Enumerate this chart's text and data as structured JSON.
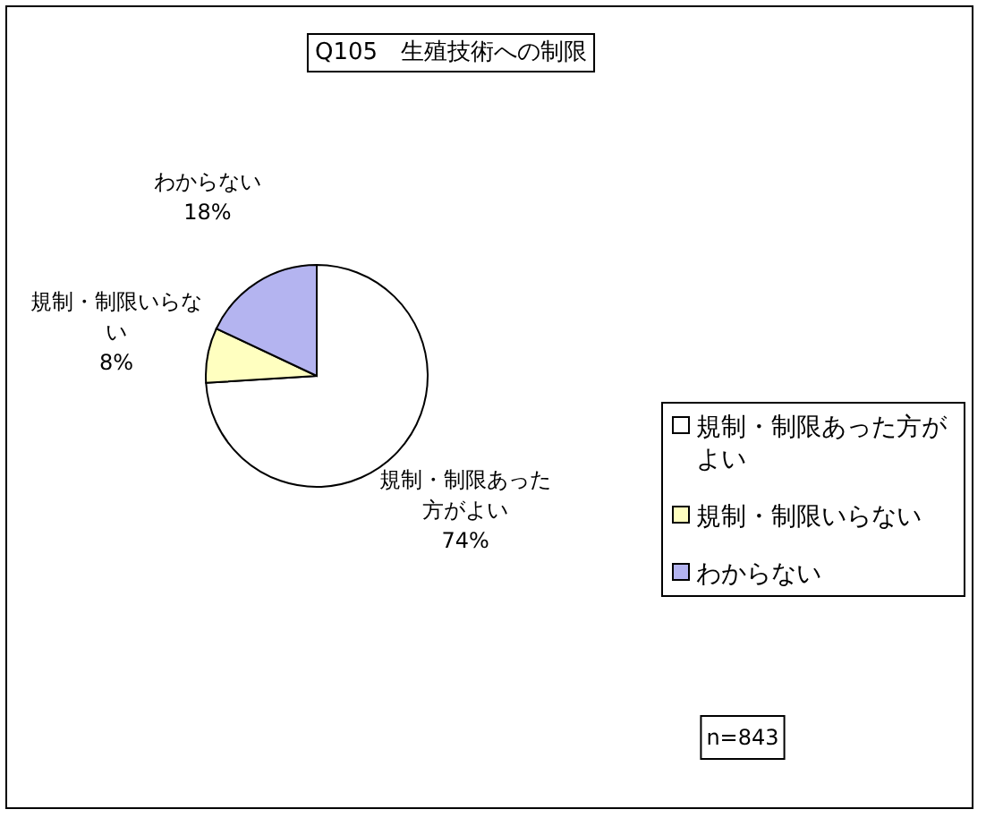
{
  "chart_data": {
    "type": "pie",
    "title": "Q105　生殖技術への制限",
    "categories": [
      "規制・制限あった方がよい",
      "規制・制限いらない",
      "わからない"
    ],
    "values": [
      74,
      8,
      18
    ],
    "colors": [
      "#ffffff",
      "#ffffc0",
      "#b4b4f0"
    ],
    "value_labels": [
      "74%",
      "8%",
      "18%"
    ],
    "legend": "right",
    "annotations": [
      "n=843"
    ]
  }
}
